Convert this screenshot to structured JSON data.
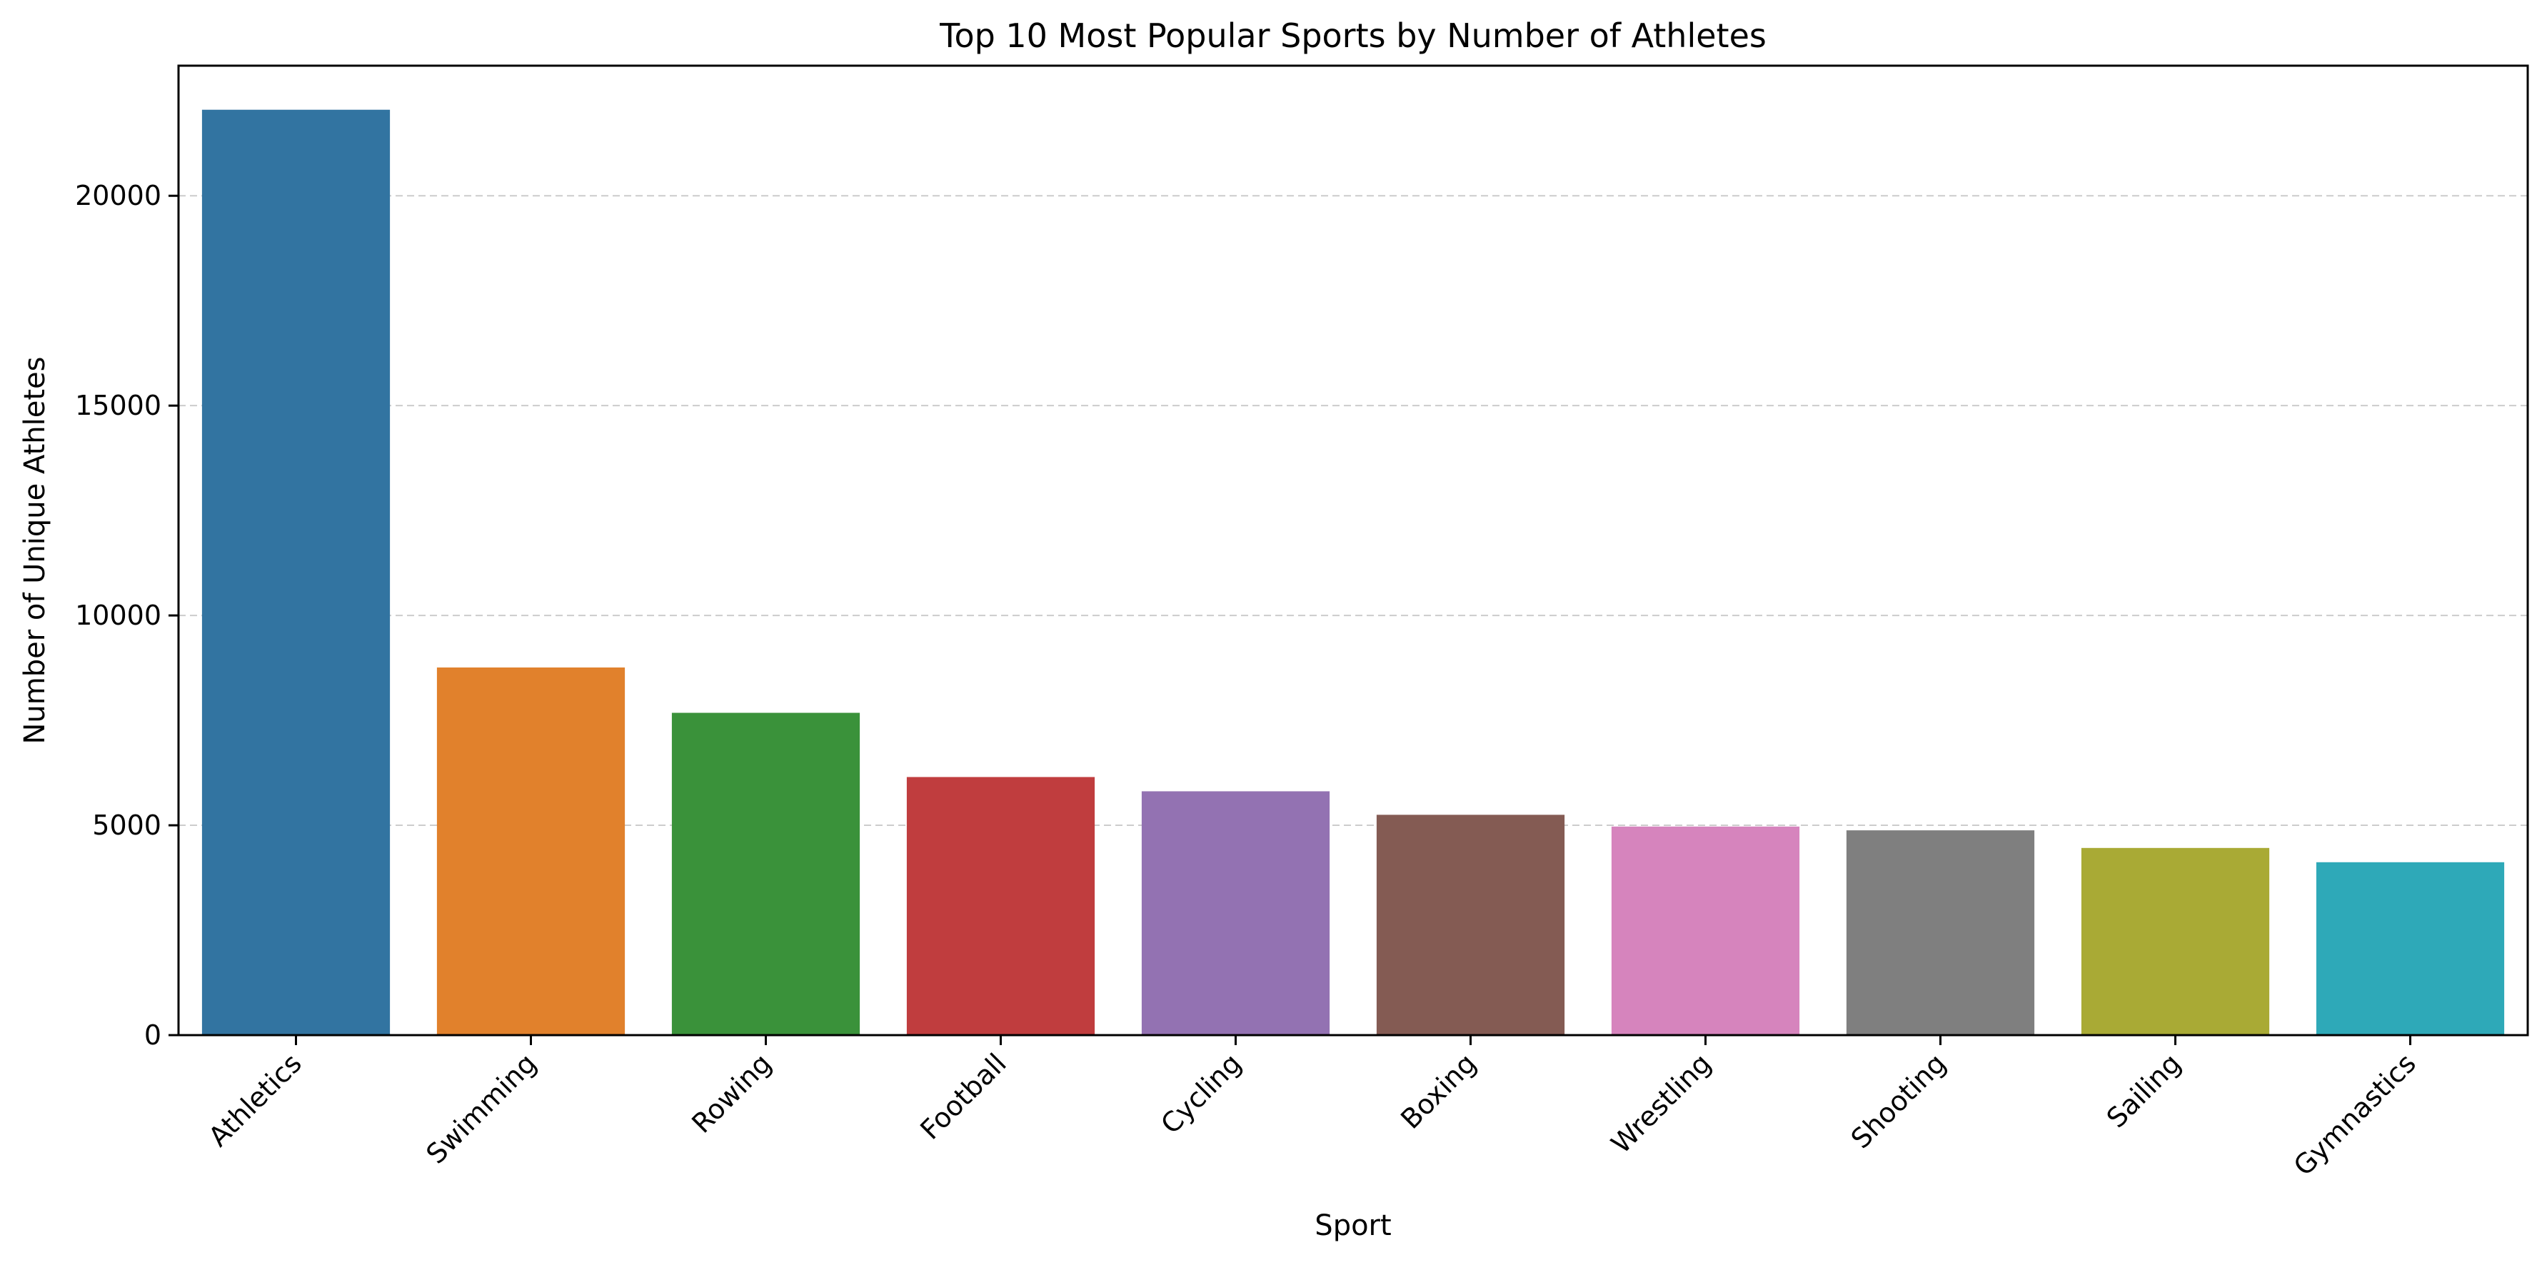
{
  "chart_data": {
    "type": "bar",
    "title": "Top 10 Most Popular Sports by Number of Athletes",
    "xlabel": "Sport",
    "ylabel": "Number of Unique Athletes",
    "categories": [
      "Athletics",
      "Swimming",
      "Rowing",
      "Football",
      "Cycling",
      "Boxing",
      "Wrestling",
      "Shooting",
      "Sailing",
      "Gymnastics"
    ],
    "values": [
      22050,
      8760,
      7680,
      6150,
      5810,
      5250,
      4970,
      4880,
      4460,
      4120
    ],
    "colors": [
      "#3274a1",
      "#e1812c",
      "#3a923a",
      "#c03d3e",
      "#9372b2",
      "#845b53",
      "#d684bd",
      "#7f7f7f",
      "#a9aa35",
      "#2ea9b8"
    ],
    "ylim": [
      0,
      23100
    ],
    "yticks": [
      0,
      5000,
      10000,
      15000,
      20000
    ],
    "ytick_labels": [
      "0",
      "5000",
      "10000",
      "15000",
      "20000"
    ],
    "grid": "y-dashed",
    "legend": "none"
  }
}
